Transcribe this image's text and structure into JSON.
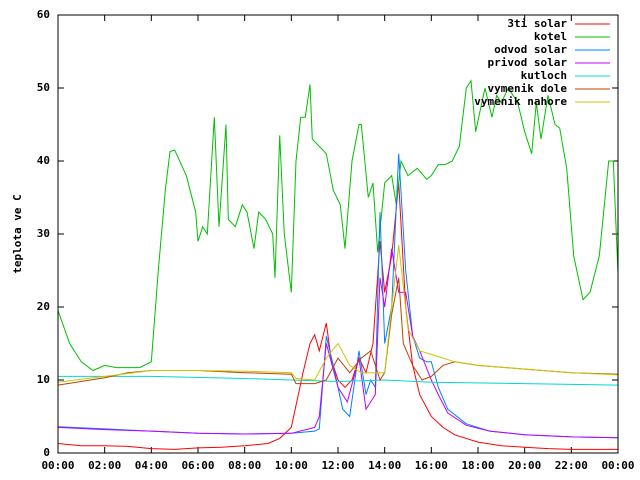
{
  "chart_data": {
    "type": "line",
    "ylabel": "teplota ve C",
    "xlim": [
      0,
      24
    ],
    "xticks": [
      {
        "value": 0,
        "label": "00:00"
      },
      {
        "value": 2,
        "label": "02:00"
      },
      {
        "value": 4,
        "label": "04:00"
      },
      {
        "value": 6,
        "label": "06:00"
      },
      {
        "value": 8,
        "label": "08:00"
      },
      {
        "value": 10,
        "label": "10:00"
      },
      {
        "value": 12,
        "label": "12:00"
      },
      {
        "value": 14,
        "label": "14:00"
      },
      {
        "value": 16,
        "label": "16:00"
      },
      {
        "value": 18,
        "label": "18:00"
      },
      {
        "value": 20,
        "label": "20:00"
      },
      {
        "value": 22,
        "label": "22:00"
      },
      {
        "value": 24,
        "label": "00:00"
      }
    ],
    "ylim": [
      0,
      60
    ],
    "yticks": [
      0,
      10,
      20,
      30,
      40,
      50,
      60
    ],
    "legend": "top-right",
    "series": [
      {
        "name": "3ti solar",
        "color": "#ff0000",
        "x": [
          0,
          1,
          2,
          3,
          4,
          5,
          6,
          7,
          8,
          9,
          9.5,
          10,
          10.5,
          10.8,
          11,
          11.2,
          11.5,
          11.7,
          12,
          12.3,
          12.6,
          12.9,
          13.2,
          13.5,
          13.8,
          14,
          14.3,
          14.6,
          14.9,
          15.2,
          15.5,
          16,
          16.5,
          17,
          18,
          19,
          20,
          21,
          22,
          23,
          24
        ],
        "values": [
          1.3,
          1,
          1,
          0.9,
          0.6,
          0.5,
          0.7,
          0.8,
          1,
          1.3,
          2,
          3.5,
          11,
          15,
          16.2,
          14,
          17.8,
          13,
          10,
          9,
          10,
          13,
          11,
          15,
          29,
          22,
          27,
          37,
          20,
          12,
          8,
          5,
          3.5,
          2.5,
          1.5,
          1,
          0.8,
          0.6,
          0.5,
          0.5,
          0.5
        ]
      },
      {
        "name": "kotel",
        "color": "#00c000",
        "x": [
          0,
          0.5,
          1,
          1.5,
          2,
          2.5,
          3,
          3.5,
          4,
          4.3,
          4.6,
          4.8,
          5,
          5.5,
          5.9,
          6,
          6.2,
          6.4,
          6.7,
          6.9,
          7.2,
          7.3,
          7.6,
          7.9,
          8.1,
          8.4,
          8.6,
          8.9,
          9.2,
          9.3,
          9.5,
          9.7,
          10,
          10.2,
          10.4,
          10.6,
          10.8,
          10.9,
          11.2,
          11.5,
          11.8,
          12.1,
          12.3,
          12.6,
          12.9,
          13,
          13.3,
          13.5,
          13.7,
          14,
          14.3,
          14.5,
          14.7,
          15,
          15.4,
          15.8,
          16,
          16.3,
          16.6,
          16.9,
          17.2,
          17.5,
          17.7,
          17.9,
          18.1,
          18.3,
          18.6,
          18.8,
          19,
          19.3,
          19.7,
          20,
          20.3,
          20.5,
          20.7,
          21,
          21.3,
          21.5,
          21.8,
          22.1,
          22.5,
          22.8,
          23.2,
          23.6,
          23.8,
          24
        ],
        "values": [
          19.5,
          15,
          12.5,
          11.3,
          12,
          11.7,
          11.7,
          11.7,
          12.5,
          25,
          36,
          41.3,
          41.5,
          38,
          33,
          29,
          31,
          30,
          46,
          31,
          45,
          32,
          31,
          34,
          33,
          28,
          33,
          32,
          30,
          24,
          43.5,
          30,
          22,
          40,
          46,
          46,
          50.5,
          43,
          42,
          41,
          36,
          34,
          28,
          40,
          45,
          45,
          35,
          37,
          27.5,
          37,
          38,
          34,
          40,
          38,
          39,
          37.5,
          38,
          39.5,
          39.5,
          40,
          42,
          50,
          51,
          44,
          47,
          50,
          46,
          49,
          48,
          50,
          48,
          44,
          41,
          48,
          43,
          49,
          45,
          44.5,
          39,
          27,
          21,
          22,
          27,
          40,
          40,
          24.5
        ]
      },
      {
        "name": "odvod solar",
        "color": "#0080ff",
        "x": [
          0,
          2,
          4,
          6,
          8,
          10,
          11,
          11.2,
          11.5,
          11.8,
          12.2,
          12.5,
          12.9,
          13.2,
          13.4,
          13.6,
          13.8,
          14,
          14.3,
          14.6,
          14.9,
          15.2,
          15.5,
          15.8,
          16,
          16.3,
          16.7,
          17.5,
          18.5,
          20,
          22,
          24
        ],
        "values": [
          3.6,
          3.3,
          3,
          2.7,
          2.6,
          2.7,
          3,
          3.3,
          16,
          12,
          6,
          5,
          14,
          8,
          10,
          9,
          33,
          15,
          20,
          41,
          25,
          16,
          13,
          12.5,
          12.5,
          9,
          6,
          4,
          3,
          2.5,
          2.2,
          2.1
        ]
      },
      {
        "name": "privod solar",
        "color": "#c000ff",
        "x": [
          0,
          2,
          4,
          6,
          8,
          10,
          11,
          11.2,
          11.5,
          12,
          12.4,
          12.9,
          13.2,
          13.4,
          13.6,
          13.8,
          14,
          14.3,
          14.6,
          14.9,
          15.2,
          15.5,
          16,
          16.3,
          16.7,
          17.5,
          18.5,
          20,
          22,
          24
        ],
        "values": [
          3.5,
          3.2,
          3,
          2.7,
          2.6,
          2.7,
          3.5,
          5,
          15,
          9,
          7,
          13,
          6,
          7,
          8,
          24,
          20,
          28,
          22,
          22,
          16,
          14,
          10,
          8,
          5.5,
          3.8,
          3,
          2.5,
          2.2,
          2.1
        ]
      },
      {
        "name": "kutloch",
        "color": "#00d8d8",
        "x": [
          0,
          4,
          8,
          10,
          12,
          14,
          16,
          20,
          24
        ],
        "values": [
          10.5,
          10.5,
          10.2,
          10,
          9.8,
          10,
          9.7,
          9.5,
          9.3
        ]
      },
      {
        "name": "vymenik dole",
        "color": "#c04000",
        "x": [
          0,
          2,
          3,
          4,
          6,
          8,
          10,
          10.2,
          11,
          11.5,
          12,
          12.5,
          13,
          13.4,
          13.8,
          14,
          14.3,
          14.6,
          14.8,
          15.2,
          15.6,
          16,
          16.5,
          17,
          18,
          20,
          22,
          24
        ],
        "values": [
          9.3,
          10.3,
          11,
          11.3,
          11.3,
          11,
          10.8,
          9.5,
          9.5,
          10,
          13,
          11,
          13,
          14,
          10,
          11,
          19,
          24,
          15,
          12,
          10,
          10.5,
          12,
          12.5,
          12,
          11.5,
          11,
          10.8
        ]
      },
      {
        "name": "vymenik nahore",
        "color": "#c8c800",
        "x": [
          0,
          2,
          4,
          6,
          8,
          10,
          10.2,
          11,
          11.5,
          12,
          12.5,
          13,
          13.5,
          14,
          14.3,
          14.6,
          15,
          15.5,
          16,
          17,
          18,
          20,
          22,
          24
        ],
        "values": [
          9.7,
          10.5,
          11.3,
          11.3,
          11.2,
          11,
          10.2,
          10,
          13,
          15,
          12,
          11,
          11,
          11,
          20,
          28.5,
          17,
          14,
          13.5,
          12.5,
          12,
          11.5,
          11,
          10.7
        ]
      }
    ]
  }
}
